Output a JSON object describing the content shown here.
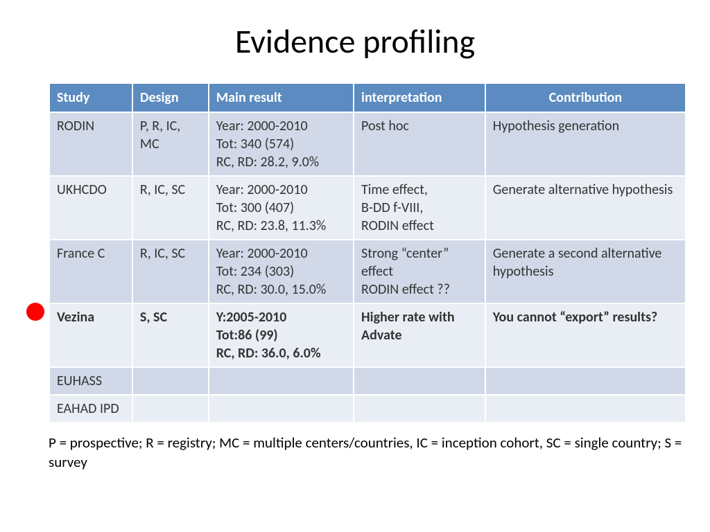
{
  "title": "Evidence profiling",
  "table": {
    "header_bg": "#5b8bc0",
    "header_fg": "#ffffff",
    "row_odd_bg": "#d1d9e8",
    "row_even_bg": "#e9edf4",
    "columns": [
      {
        "label": "Study",
        "align": "left"
      },
      {
        "label": "Design",
        "align": "left"
      },
      {
        "label": "Main result",
        "align": "left"
      },
      {
        "label": "interpretation",
        "align": "left"
      },
      {
        "label": "Contribution",
        "align": "center"
      }
    ],
    "rows": [
      {
        "bold": false,
        "marker": false,
        "cells": [
          "RODIN",
          "P, R, IC, MC",
          "Year: 2000-2010\nTot: 340 (574)\nRC, RD: 28.2, 9.0%",
          "Post hoc",
          "Hypothesis generation"
        ]
      },
      {
        "bold": false,
        "marker": false,
        "cells": [
          "UKHCDO",
          "R, IC, SC",
          "Year: 2000-2010\nTot: 300 (407)\nRC, RD: 23.8, 11.3%",
          "Time effect,\n B-DD f-VIII,\nRODIN effect",
          "Generate alternative hypothesis"
        ]
      },
      {
        "bold": false,
        "marker": false,
        "cells": [
          "France C",
          "R, IC, SC",
          "Year: 2000-2010\nTot: 234 (303)\nRC, RD: 30.0, 15.0%",
          "Strong “center” effect\nRODIN effect ??",
          "Generate a second alternative hypothesis"
        ]
      },
      {
        "bold": true,
        "marker": true,
        "cells": [
          "Vezina",
          "S, SC",
          "Y:2005-2010\nTot:86 (99)\nRC, RD: 36.0, 6.0%",
          "Higher rate with Advate",
          "You cannot “export” results?"
        ]
      },
      {
        "bold": false,
        "marker": false,
        "cells": [
          "EUHASS",
          "",
          "",
          "",
          ""
        ]
      },
      {
        "bold": false,
        "marker": false,
        "cells": [
          "EAHAD IPD",
          "",
          "",
          "",
          ""
        ]
      }
    ]
  },
  "legend": "P = prospective; R = registry; MC = multiple centers/countries, IC = inception cohort, SC = single country; S = survey",
  "marker_color": "#ff0000"
}
